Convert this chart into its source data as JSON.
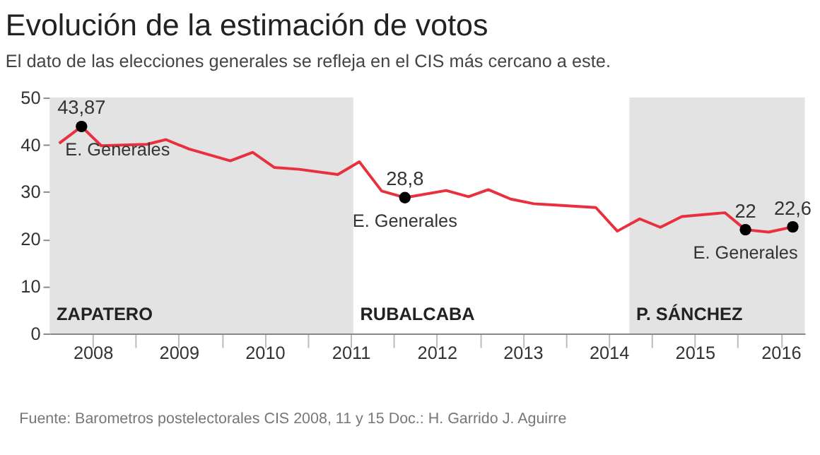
{
  "chart_data": {
    "type": "line",
    "title": "Evolución de la estimación de votos",
    "subtitle": "El dato de las elecciones generales se refleja en el CIS más cercano a este.",
    "series": [
      {
        "color": "#e8303f",
        "x": [
          2008.11,
          2008.37,
          2008.6,
          2009.13,
          2009.35,
          2009.62,
          2010.1,
          2010.36,
          2010.61,
          2010.9,
          2011.35,
          2011.6,
          2011.86,
          2012.13,
          2012.61,
          2012.87,
          2013.1,
          2013.36,
          2013.63,
          2014.35,
          2014.6,
          2014.86,
          2015.1,
          2015.35,
          2015.85,
          2016.09,
          2016.36,
          2016.64
        ],
        "values": [
          40.3,
          43.87,
          39.8,
          40.1,
          41.1,
          39.1,
          36.6,
          38.4,
          35.2,
          34.8,
          33.7,
          36.4,
          30.2,
          28.8,
          30.3,
          29.0,
          30.5,
          28.5,
          27.5,
          26.7,
          21.7,
          24.3,
          22.5,
          24.8,
          25.6,
          22,
          21.5,
          22.6
        ]
      },
      {
        "type": "scatter",
        "marker": "circle",
        "color": "#000000",
        "x": [
          2008.37,
          2012.13,
          2016.09,
          2016.64
        ],
        "values": [
          43.87,
          28.8,
          22,
          22.6
        ],
        "value_labels": [
          "43,87",
          "28,8",
          "22",
          "22,6"
        ]
      }
    ],
    "xlim": [
      2008,
      2016.78
    ],
    "xticks": [
      {
        "value": 2008.5,
        "label": "2008"
      },
      {
        "value": 2009,
        "label": null
      },
      {
        "value": 2009.5,
        "label": "2009"
      },
      {
        "value": 2010,
        "label": null
      },
      {
        "value": 2010.5,
        "label": "2010"
      },
      {
        "value": 2011,
        "label": null
      },
      {
        "value": 2011.5,
        "label": "2011"
      },
      {
        "value": 2012,
        "label": null
      },
      {
        "value": 2012.5,
        "label": "2012"
      },
      {
        "value": 2013,
        "label": null
      },
      {
        "value": 2013.5,
        "label": "2013"
      },
      {
        "value": 2014,
        "label": null
      },
      {
        "value": 2014.5,
        "label": "2014"
      },
      {
        "value": 2015,
        "label": null
      },
      {
        "value": 2015.5,
        "label": "2015"
      },
      {
        "value": 2016,
        "label": null
      },
      {
        "value": 2016.5,
        "label": "2016"
      }
    ],
    "ylim": [
      0,
      50
    ],
    "yticks": [
      0,
      10,
      20,
      30,
      40,
      50
    ],
    "grid": false,
    "marker": "none",
    "line_style": "solid",
    "bands": [
      {
        "axis": "x",
        "from": 2008,
        "to": 2011.53,
        "label": "ZAPATERO",
        "color": "#e3e3e3"
      },
      {
        "axis": "x",
        "from": 2014.74,
        "to": 2016.78,
        "label": "P. SÁNCHEZ",
        "color": "#e3e3e3"
      }
    ],
    "annotations": [
      {
        "text": "E. Generales",
        "x": 2008.37,
        "y": 43.87
      },
      {
        "text": "E. Generales",
        "x": 2012.13,
        "y": 28.8
      },
      {
        "text": "E. Generales",
        "x": 2016.09,
        "y": 22
      },
      {
        "text": "RUBALCABA",
        "x": 2011.53
      },
      "Fuente: Barometros postelectorales CIS 2008, 11 y 15",
      "Doc.: H. Garrido",
      "J. Aguirre"
    ]
  }
}
